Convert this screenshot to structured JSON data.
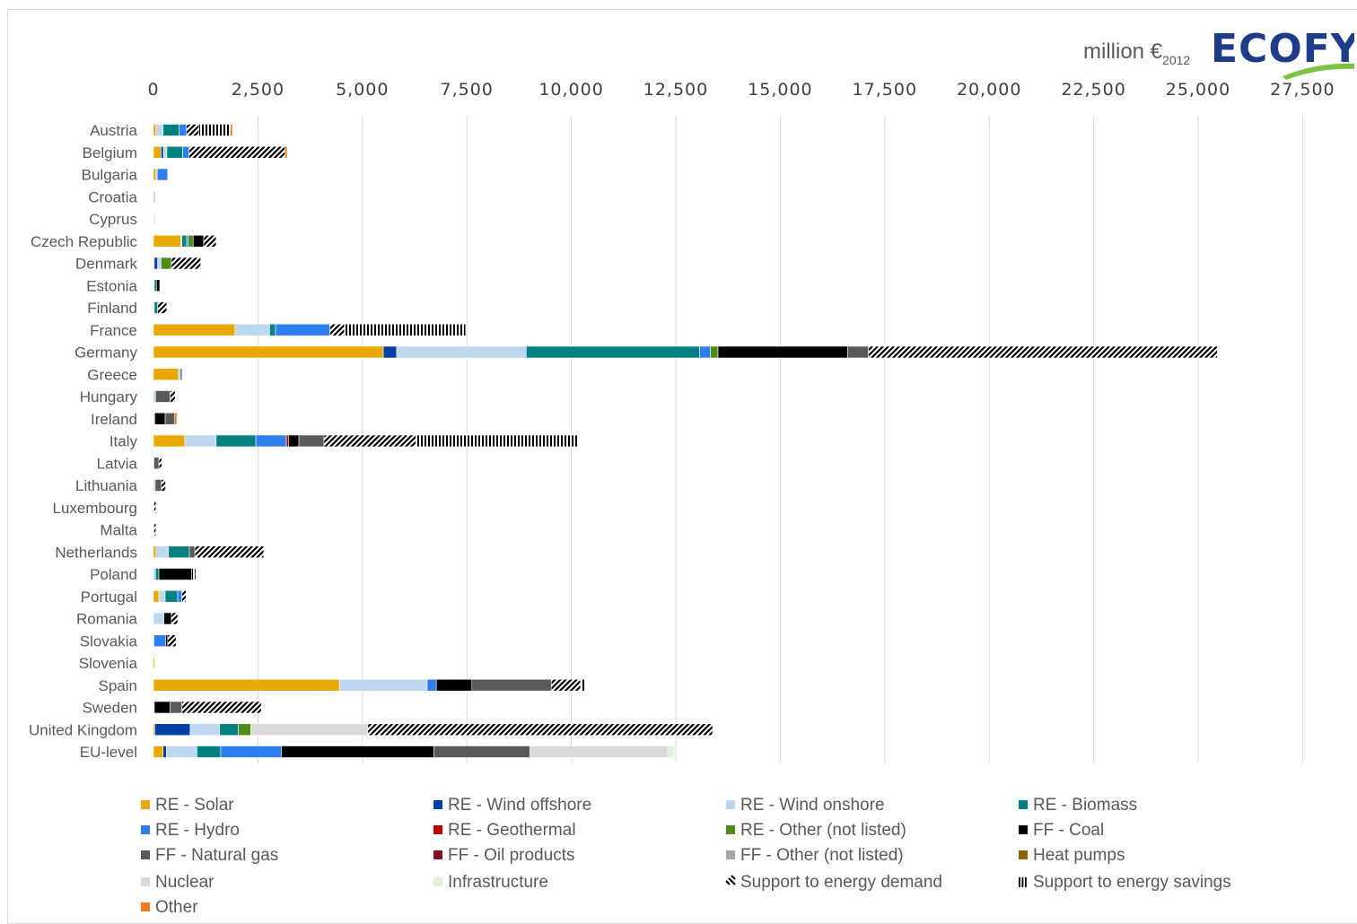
{
  "unit_label": {
    "main": "million €",
    "sub": "2012"
  },
  "logo_text": "ECOFYS",
  "colors": {
    "logo_swoosh": "#7cc242",
    "bar_outline": "#ffffff"
  },
  "chart_data": {
    "type": "bar",
    "orientation": "horizontal",
    "stacked": true,
    "title": "",
    "xlabel": "",
    "ylabel": "",
    "xlim": [
      0,
      27500
    ],
    "x_ticks": [
      0,
      2500,
      5000,
      7500,
      10000,
      12500,
      15000,
      17500,
      20000,
      22500,
      25000,
      27500
    ],
    "x_tick_labels": [
      "0",
      "2,500",
      "5,000",
      "7,500",
      "10,000",
      "12,500",
      "15,000",
      "17,500",
      "20,000",
      "22,500",
      "25,000",
      "27,500"
    ],
    "axis_position": "top",
    "grid": "vertical",
    "legend_position": "bottom",
    "categories": [
      "Austria",
      "Belgium",
      "Bulgaria",
      "Croatia",
      "Cyprus",
      "Czech Republic",
      "Denmark",
      "Estonia",
      "Finland",
      "France",
      "Germany",
      "Greece",
      "Hungary",
      "Ireland",
      "Italy",
      "Latvia",
      "Lithuania",
      "Luxembourg",
      "Malta",
      "Netherlands",
      "Poland",
      "Portugal",
      "Romania",
      "Slovakia",
      "Slovenia",
      "Spain",
      "Sweden",
      "United Kingdom",
      "EU-level"
    ],
    "series": [
      {
        "name": "RE - Solar",
        "color": "#e9a800",
        "pattern": "solid",
        "values": [
          60,
          180,
          60,
          0,
          10,
          650,
          20,
          0,
          0,
          1950,
          5500,
          600,
          0,
          0,
          750,
          0,
          0,
          0,
          10,
          60,
          0,
          130,
          0,
          0,
          30,
          4450,
          0,
          30,
          230
        ]
      },
      {
        "name": "RE - Wind offshore",
        "color": "#003fa5",
        "pattern": "solid",
        "values": [
          0,
          60,
          0,
          0,
          0,
          0,
          80,
          0,
          0,
          0,
          320,
          0,
          0,
          0,
          0,
          0,
          0,
          0,
          0,
          0,
          0,
          0,
          0,
          0,
          0,
          0,
          0,
          850,
          80
        ]
      },
      {
        "name": "RE - Wind onshore",
        "color": "#bdd7ee",
        "pattern": "solid",
        "values": [
          170,
          80,
          30,
          50,
          30,
          30,
          80,
          20,
          20,
          830,
          3100,
          50,
          50,
          30,
          750,
          10,
          40,
          10,
          0,
          300,
          50,
          150,
          250,
          10,
          0,
          2100,
          20,
          700,
          730
        ]
      },
      {
        "name": "RE - Biomass",
        "color": "#008080",
        "pattern": "solid",
        "values": [
          380,
          380,
          0,
          0,
          0,
          110,
          0,
          50,
          80,
          140,
          4150,
          0,
          0,
          0,
          950,
          0,
          0,
          0,
          0,
          500,
          80,
          300,
          0,
          0,
          0,
          0,
          0,
          450,
          570
        ]
      },
      {
        "name": "RE - Hydro",
        "color": "#2f7ef0",
        "pattern": "solid",
        "values": [
          180,
          150,
          250,
          0,
          0,
          40,
          0,
          0,
          0,
          1300,
          260,
          0,
          0,
          0,
          730,
          0,
          0,
          0,
          0,
          0,
          0,
          100,
          0,
          280,
          0,
          220,
          0,
          0,
          1450
        ]
      },
      {
        "name": "RE - Geothermal",
        "color": "#c00000",
        "pattern": "solid",
        "values": [
          0,
          0,
          0,
          0,
          0,
          0,
          0,
          0,
          0,
          0,
          0,
          0,
          0,
          0,
          50,
          0,
          0,
          0,
          0,
          0,
          0,
          0,
          0,
          0,
          0,
          0,
          0,
          0,
          0
        ]
      },
      {
        "name": "RE - Other (not listed)",
        "color": "#4e8b17",
        "pattern": "solid",
        "values": [
          0,
          0,
          0,
          0,
          0,
          120,
          250,
          0,
          0,
          0,
          180,
          0,
          0,
          0,
          0,
          0,
          0,
          0,
          0,
          0,
          0,
          0,
          0,
          0,
          0,
          0,
          0,
          300,
          0
        ]
      },
      {
        "name": "FF - Coal",
        "color": "#000000",
        "pattern": "solid",
        "values": [
          0,
          0,
          0,
          0,
          0,
          250,
          0,
          80,
          0,
          0,
          3100,
          0,
          0,
          250,
          250,
          0,
          0,
          0,
          0,
          0,
          780,
          0,
          180,
          50,
          0,
          850,
          380,
          0,
          3650
        ]
      },
      {
        "name": "FF - Natural gas",
        "color": "#595959",
        "pattern": "solid",
        "values": [
          0,
          0,
          0,
          0,
          0,
          0,
          0,
          0,
          0,
          0,
          500,
          0,
          350,
          230,
          600,
          120,
          150,
          0,
          0,
          130,
          0,
          0,
          0,
          0,
          0,
          1900,
          280,
          0,
          2300
        ]
      },
      {
        "name": "FF - Oil products",
        "color": "#7f1428",
        "pattern": "solid",
        "values": [
          0,
          0,
          0,
          0,
          0,
          0,
          0,
          0,
          0,
          0,
          0,
          0,
          0,
          0,
          0,
          0,
          0,
          0,
          0,
          0,
          0,
          0,
          0,
          0,
          0,
          0,
          0,
          0,
          0
        ]
      },
      {
        "name": "FF - Other (not listed)",
        "color": "#a6a6a6",
        "pattern": "solid",
        "values": [
          0,
          0,
          0,
          0,
          0,
          0,
          0,
          0,
          0,
          0,
          0,
          0,
          0,
          0,
          0,
          0,
          0,
          0,
          0,
          0,
          0,
          0,
          0,
          0,
          0,
          0,
          0,
          0,
          0
        ]
      },
      {
        "name": "Heat pumps",
        "color": "#8c6400",
        "pattern": "solid",
        "values": [
          0,
          0,
          0,
          0,
          0,
          0,
          0,
          0,
          0,
          0,
          0,
          0,
          0,
          0,
          0,
          0,
          0,
          0,
          0,
          0,
          0,
          0,
          0,
          0,
          0,
          0,
          0,
          0,
          0
        ]
      },
      {
        "name": "Nuclear",
        "color": "#d9d9d9",
        "pattern": "solid",
        "values": [
          0,
          0,
          0,
          0,
          0,
          0,
          0,
          0,
          0,
          0,
          0,
          0,
          0,
          0,
          0,
          0,
          0,
          0,
          0,
          0,
          0,
          0,
          0,
          0,
          0,
          0,
          0,
          2800,
          3300
        ]
      },
      {
        "name": "Infrastructure",
        "color": "#e2efd9",
        "pattern": "solid",
        "values": [
          0,
          0,
          0,
          0,
          0,
          0,
          0,
          0,
          0,
          0,
          0,
          0,
          0,
          0,
          0,
          0,
          0,
          0,
          0,
          0,
          0,
          0,
          0,
          0,
          0,
          0,
          0,
          0,
          150
        ]
      },
      {
        "name": "Support to energy demand",
        "color": "#000000",
        "pattern": "diagonal",
        "values": [
          300,
          2300,
          0,
          0,
          0,
          300,
          700,
          0,
          220,
          350,
          8350,
          0,
          120,
          0,
          2200,
          70,
          100,
          50,
          50,
          1650,
          0,
          100,
          150,
          200,
          0,
          700,
          1900,
          8250,
          0
        ]
      },
      {
        "name": "Support to energy savings",
        "color": "#000000",
        "pattern": "vertical",
        "values": [
          750,
          0,
          0,
          0,
          0,
          0,
          0,
          0,
          0,
          2900,
          0,
          30,
          0,
          0,
          3900,
          0,
          0,
          0,
          0,
          0,
          100,
          0,
          0,
          0,
          0,
          100,
          0,
          0,
          0
        ]
      },
      {
        "name": "Other",
        "color": "#f27b1c",
        "pattern": "solid",
        "values": [
          50,
          50,
          0,
          0,
          0,
          0,
          0,
          0,
          0,
          0,
          0,
          0,
          0,
          50,
          0,
          0,
          0,
          0,
          0,
          0,
          0,
          0,
          0,
          0,
          0,
          0,
          0,
          0,
          0
        ]
      }
    ]
  }
}
